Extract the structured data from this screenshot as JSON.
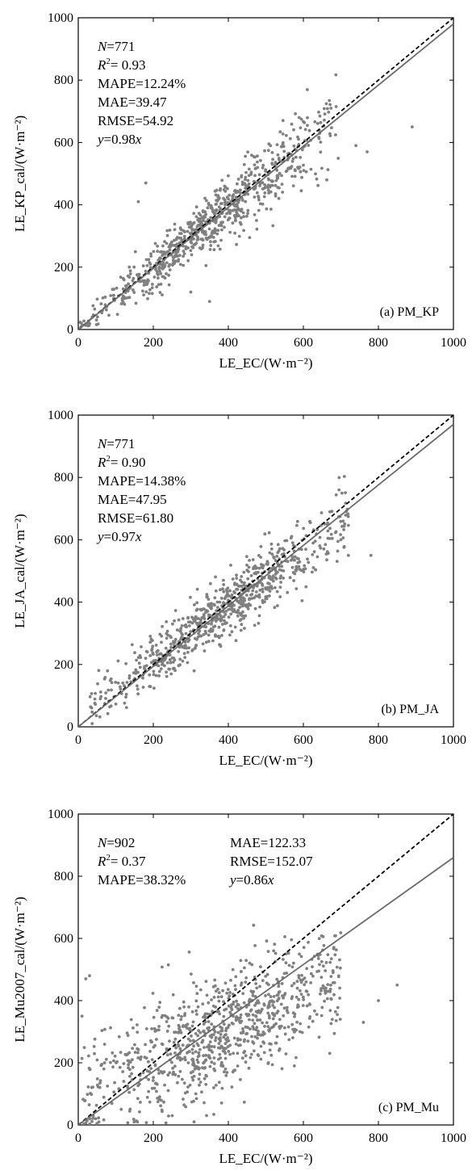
{
  "chart_data": [
    {
      "type": "scatter",
      "panel_label": "(a) PM_KP",
      "xlabel": "LE_EC/(W·m⁻²)",
      "ylabel": "LE_KP_cal/(W·m⁻²)",
      "xlim": [
        0,
        1000
      ],
      "ylim": [
        0,
        1000
      ],
      "x_ticks": [
        0,
        200,
        400,
        600,
        800,
        1000
      ],
      "y_ticks": [
        0,
        200,
        400,
        600,
        800,
        1000
      ],
      "stats_left": [
        {
          "label": "N",
          "value": "=771"
        },
        {
          "label": "R²",
          "value": "= 0.93"
        },
        {
          "label": "",
          "value": "MAPE=12.24%"
        },
        {
          "label": "",
          "value": "MAE=39.47"
        },
        {
          "label": "",
          "value": "RMSE=54.92"
        },
        {
          "label": "y",
          "value": "=0.98x"
        }
      ],
      "stats_right": [],
      "slope": 0.98,
      "n": 771,
      "point_cloud": {
        "x_center": 370,
        "x_spread": 170,
        "x_min": 5,
        "x_max": 700,
        "noise": 45,
        "shape": "linear"
      },
      "outliers": [
        [
          890,
          650
        ],
        [
          770,
          570
        ],
        [
          740,
          590
        ],
        [
          180,
          470
        ],
        [
          160,
          410
        ],
        [
          350,
          90
        ],
        [
          300,
          120
        ]
      ],
      "colors": {
        "points": "#808080",
        "fit": "#6b6b6b",
        "one_to_one": "#000000"
      }
    },
    {
      "type": "scatter",
      "panel_label": "(b) PM_JA",
      "xlabel": "LE_EC/(W·m⁻²)",
      "ylabel": "LE_JA_cal/(W·m⁻²)",
      "xlim": [
        0,
        1000
      ],
      "ylim": [
        0,
        1000
      ],
      "x_ticks": [
        0,
        200,
        400,
        600,
        800,
        1000
      ],
      "y_ticks": [
        0,
        200,
        400,
        600,
        800,
        1000
      ],
      "stats_left": [
        {
          "label": "N",
          "value": "=771"
        },
        {
          "label": "R²",
          "value": "= 0.90"
        },
        {
          "label": "",
          "value": "MAPE=14.38%"
        },
        {
          "label": "",
          "value": "MAE=47.95"
        },
        {
          "label": "",
          "value": "RMSE=61.80"
        },
        {
          "label": "y",
          "value": "=0.97x"
        }
      ],
      "stats_right": [],
      "slope": 0.97,
      "n": 771,
      "point_cloud": {
        "x_center": 390,
        "x_spread": 165,
        "x_min": 30,
        "x_max": 720,
        "noise": 50,
        "shape": "linear_offset"
      },
      "outliers": [
        [
          780,
          550
        ],
        [
          720,
          550
        ],
        [
          700,
          600
        ]
      ],
      "colors": {
        "points": "#808080",
        "fit": "#6b6b6b",
        "one_to_one": "#000000"
      }
    },
    {
      "type": "scatter",
      "panel_label": "(c) PM_Mu",
      "xlabel": "LE_EC/(W·m⁻²)",
      "ylabel": "LE_Mu2007_cal/(W·m⁻²)",
      "xlim": [
        0,
        1000
      ],
      "ylim": [
        0,
        1000
      ],
      "x_ticks": [
        0,
        200,
        400,
        600,
        800,
        1000
      ],
      "y_ticks": [
        0,
        200,
        400,
        600,
        800,
        1000
      ],
      "stats_left": [
        {
          "label": "N",
          "value": "=902"
        },
        {
          "label": "R²",
          "value": "= 0.37"
        },
        {
          "label": "",
          "value": "MAPE=38.32%"
        }
      ],
      "stats_right": [
        {
          "label": "",
          "value": "MAE=122.33"
        },
        {
          "label": "",
          "value": "RMSE=152.07"
        },
        {
          "label": "y",
          "value": "=0.86x"
        }
      ],
      "slope": 0.86,
      "n": 902,
      "point_cloud": {
        "x_center": 380,
        "x_spread": 190,
        "x_min": 5,
        "x_max": 700,
        "noise": 100,
        "shape": "diffuse"
      },
      "outliers": [
        [
          850,
          450
        ],
        [
          800,
          400
        ],
        [
          760,
          330
        ],
        [
          30,
          480
        ],
        [
          20,
          470
        ],
        [
          10,
          350
        ],
        [
          70,
          200
        ]
      ],
      "colors": {
        "points": "#808080",
        "fit": "#6b6b6b",
        "one_to_one": "#000000"
      }
    }
  ]
}
